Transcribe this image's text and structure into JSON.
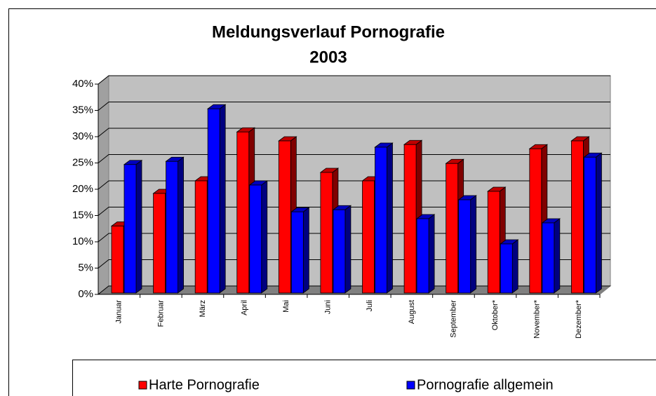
{
  "chart_data": {
    "type": "bar3d",
    "title": "Meldungsverlauf Pornografie",
    "subtitle": "2003",
    "categories": [
      "Januar",
      "Februar",
      "März",
      "April",
      "Mai",
      "Juni",
      "Juli",
      "August",
      "September",
      "Oktober*",
      "November*",
      "Dezember*"
    ],
    "series": [
      {
        "name": "Harte Pornografie",
        "color": "#ff0000",
        "values": [
          13,
          19.2,
          21.6,
          30.9,
          29.2,
          23.2,
          21.6,
          28.5,
          24.9,
          19.6,
          27.7,
          29.2
        ]
      },
      {
        "name": "Pornografie allgemein",
        "color": "#0000ff",
        "values": [
          24.7,
          25.3,
          35.3,
          20.8,
          15.7,
          16.1,
          28,
          14.4,
          18,
          9.6,
          13.6,
          26.1
        ]
      }
    ],
    "ylim": [
      0,
      40
    ],
    "yticks": [
      {
        "value": 0,
        "label": "0%"
      },
      {
        "value": 5,
        "label": "5%"
      },
      {
        "value": 10,
        "label": "10%"
      },
      {
        "value": 15,
        "label": "15%"
      },
      {
        "value": 20,
        "label": "20%"
      },
      {
        "value": 25,
        "label": "25%"
      },
      {
        "value": 30,
        "label": "30%"
      },
      {
        "value": 35,
        "label": "35%"
      },
      {
        "value": 40,
        "label": "40%"
      }
    ],
    "grid": true,
    "legend": "bottom"
  }
}
